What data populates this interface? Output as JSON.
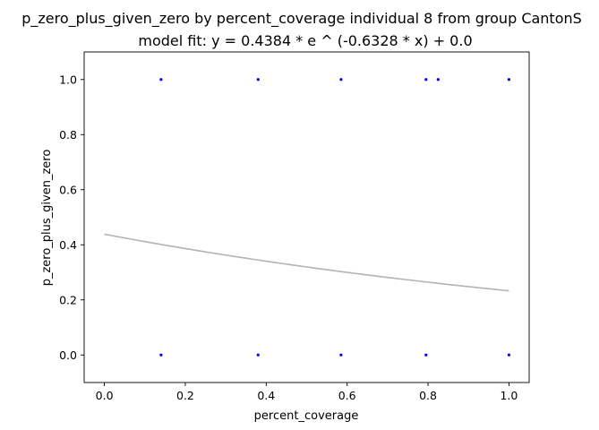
{
  "chart_data": {
    "type": "scatter",
    "title": "p_zero_plus_given_zero by percent_coverage individual 8 from group CantonS",
    "subtitle": "model fit: y = 0.4384 * e ^ (-0.6328 * x) + 0.0",
    "xlabel": "percent_coverage",
    "ylabel": "p_zero_plus_given_zero",
    "xlim": [
      -0.05,
      1.05
    ],
    "ylim": [
      -0.1,
      1.1
    ],
    "xticks": [
      0.0,
      0.2,
      0.4,
      0.6,
      0.8,
      1.0
    ],
    "xtick_labels": [
      "0.0",
      "0.2",
      "0.4",
      "0.6",
      "0.8",
      "1.0"
    ],
    "yticks": [
      0.0,
      0.2,
      0.4,
      0.6,
      0.8,
      1.0
    ],
    "ytick_labels": [
      "0.0",
      "0.2",
      "0.4",
      "0.6",
      "0.8",
      "1.0"
    ],
    "grid": false,
    "points": [
      {
        "x": 0.14,
        "y": 1
      },
      {
        "x": 0.38,
        "y": 1
      },
      {
        "x": 0.585,
        "y": 1
      },
      {
        "x": 0.795,
        "y": 1
      },
      {
        "x": 0.825,
        "y": 1
      },
      {
        "x": 1.0,
        "y": 1
      },
      {
        "x": 0.14,
        "y": 0
      },
      {
        "x": 0.38,
        "y": 0
      },
      {
        "x": 0.585,
        "y": 0
      },
      {
        "x": 0.795,
        "y": 0
      },
      {
        "x": 1.0,
        "y": 0
      }
    ],
    "fit": {
      "a": 0.4384,
      "b": -0.6328,
      "c": 0.0,
      "x_range": [
        0.0,
        1.0
      ]
    },
    "colors": {
      "points": "#0000ff",
      "fit_line": "#b3b3b3"
    }
  }
}
